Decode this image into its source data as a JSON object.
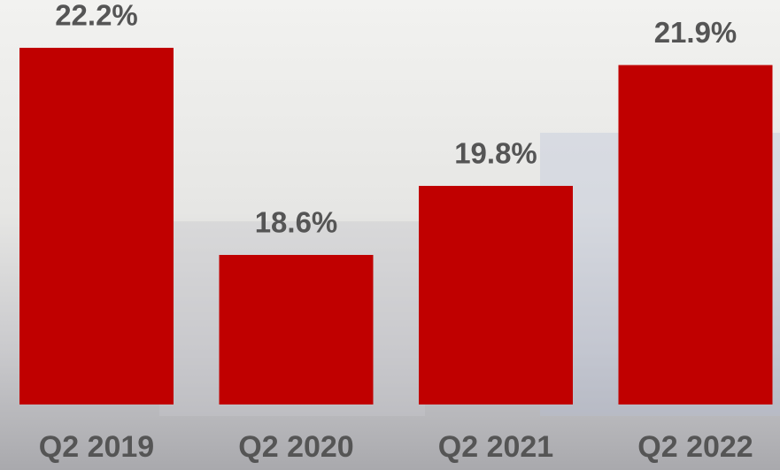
{
  "chart_data": {
    "type": "bar",
    "categories": [
      "Q2 2019",
      "Q2 2020",
      "Q2 2021",
      "Q2 2022"
    ],
    "values": [
      22.2,
      18.6,
      19.8,
      21.9
    ],
    "value_labels": [
      "22.2%",
      "18.6%",
      "19.8%",
      "21.9%"
    ],
    "color": "#c00000",
    "ylim": [
      16,
      23
    ]
  }
}
